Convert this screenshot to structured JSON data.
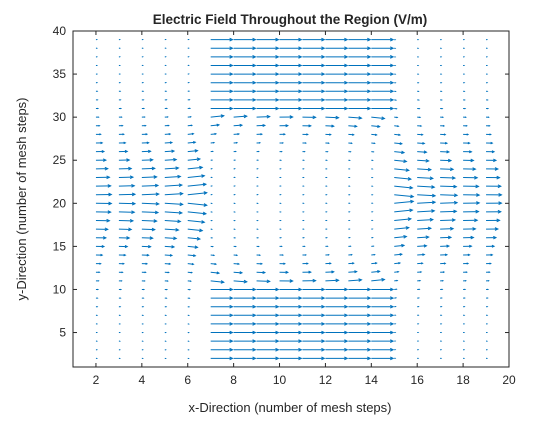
{
  "chart_data": {
    "type": "quiver",
    "title": "Electric Field Throughout the Region (V/m)",
    "xlabel": "x-Direction (number of mesh steps)",
    "ylabel": "y-Direction (number of mesh steps)",
    "xlim": [
      1,
      20
    ],
    "ylim": [
      1,
      40
    ],
    "xticks": [
      2,
      4,
      6,
      8,
      10,
      12,
      14,
      16,
      18,
      20
    ],
    "yticks": [
      5,
      10,
      15,
      20,
      25,
      30,
      35,
      40
    ],
    "grid": false,
    "legend": "none",
    "arrow_color": "#0072BD",
    "grid_x": [
      2,
      19
    ],
    "grid_y": [
      2,
      39
    ],
    "field_model": {
      "conductor_strip_x": [
        7,
        14
      ],
      "top_uniform_band_y": [
        31,
        39
      ],
      "bottom_uniform_band_y": [
        2,
        10
      ],
      "fringe_transition_y": [
        [
          11,
          14
        ],
        [
          27,
          30
        ]
      ],
      "side_field_direction": "toward the strip, strongest near y = 20",
      "strip_field_direction": "+x, uniform magnitude"
    }
  },
  "colors": {
    "axes": "#262626",
    "background": "#ffffff"
  }
}
